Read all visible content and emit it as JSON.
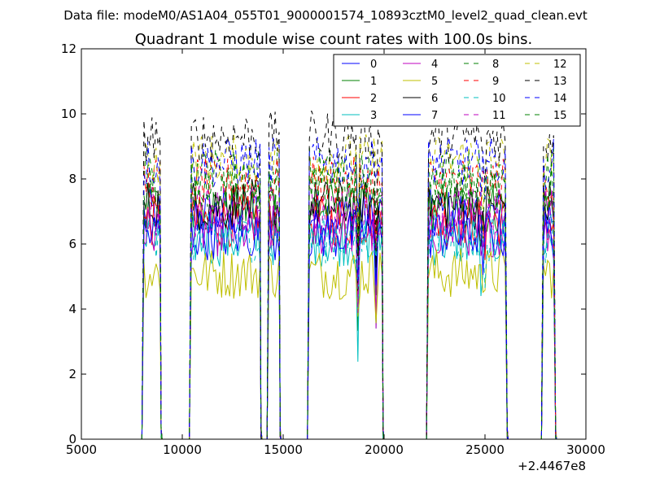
{
  "chart_data": {
    "type": "line",
    "suptitle": "Data file: modeM0/AS1A04_055T01_9000001574_10893cztM0_level2_quad_clean.evt",
    "title": "Quadrant 1 module wise count rates with 100.0s bins.",
    "xlabel": "",
    "ylabel": "",
    "x_offset_label": "+2.4467e8",
    "xlim": [
      5000,
      30000
    ],
    "ylim": [
      0,
      12
    ],
    "xticks": [
      5000,
      10000,
      15000,
      20000,
      25000,
      30000
    ],
    "xtick_labels": [
      "5000",
      "10000",
      "15000",
      "20000",
      "25000",
      "30000"
    ],
    "yticks": [
      0,
      2,
      4,
      6,
      8,
      10,
      12
    ],
    "ytick_labels": [
      "0",
      "2",
      "4",
      "6",
      "8",
      "10",
      "12"
    ],
    "grid": false,
    "legend_position": "top-right",
    "legend_columns": 4,
    "bin_seconds": 100,
    "observation_segments": [
      [
        8100,
        8900
      ],
      [
        10450,
        13850
      ],
      [
        14300,
        14800
      ],
      [
        16300,
        19900
      ],
      [
        22200,
        26050
      ],
      [
        27900,
        28450
      ]
    ],
    "series": [
      {
        "name": "0",
        "color": "#0000ff",
        "dash": "solid",
        "level": 6.9
      },
      {
        "name": "1",
        "color": "#008000",
        "dash": "solid",
        "level": 7.1
      },
      {
        "name": "2",
        "color": "#ff0000",
        "dash": "solid",
        "level": 6.7
      },
      {
        "name": "3",
        "color": "#00bfbf",
        "dash": "solid",
        "level": 6.1
      },
      {
        "name": "4",
        "color": "#bf00bf",
        "dash": "solid",
        "level": 6.4
      },
      {
        "name": "5",
        "color": "#bfbf00",
        "dash": "solid",
        "level": 5.1
      },
      {
        "name": "6",
        "color": "#000000",
        "dash": "solid",
        "level": 7.2
      },
      {
        "name": "7",
        "color": "#0000ff",
        "dash": "solid",
        "level": 6.3
      },
      {
        "name": "8",
        "color": "#008000",
        "dash": "dashed",
        "level": 8.2
      },
      {
        "name": "9",
        "color": "#ff0000",
        "dash": "dashed",
        "level": 7.9
      },
      {
        "name": "10",
        "color": "#00bfbf",
        "dash": "dashed",
        "level": 6.2
      },
      {
        "name": "11",
        "color": "#bf00bf",
        "dash": "dashed",
        "level": 7.0
      },
      {
        "name": "12",
        "color": "#bfbf00",
        "dash": "dashed",
        "level": 8.6
      },
      {
        "name": "13",
        "color": "#000000",
        "dash": "dashed",
        "level": 9.3
      },
      {
        "name": "14",
        "color": "#0000ff",
        "dash": "dashed",
        "level": 8.5
      },
      {
        "name": "15",
        "color": "#008000",
        "dash": "dashed",
        "level": 7.7
      }
    ]
  }
}
